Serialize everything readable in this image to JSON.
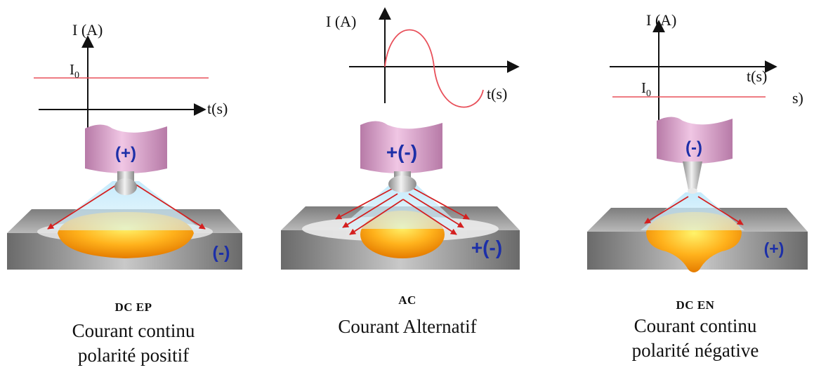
{
  "panels": [
    {
      "axis_y": "I (A)",
      "axis_x": "t(s)",
      "level_label": "I",
      "level_sub": "0",
      "electrode_sign": "(+)",
      "workpiece_sign": "(-)",
      "code": "DC EP",
      "desc_line1": "Courant continu",
      "desc_line2": "polarité positif"
    },
    {
      "axis_y": "I (A)",
      "axis_x": "t(s)",
      "electrode_sign": "+(-)",
      "workpiece_sign": "+(-)",
      "code": "AC",
      "desc_line1": "Courant Alternatif"
    },
    {
      "axis_y": "I (A)",
      "axis_x": "t(s)",
      "level_label": "I",
      "level_sub": "0",
      "stray_label": "s)",
      "electrode_sign": "(-)",
      "workpiece_sign": "(+)",
      "code": "DC EN",
      "desc_line1": "Courant continu",
      "desc_line2": "polarité négative"
    }
  ],
  "colors": {
    "current_line": "#e8505a",
    "sign": "#1c2fa8",
    "electrode": "#d79ac7",
    "plate": "#9a9a9a",
    "pool": "#ffa51a",
    "arc": "#8fd3f0",
    "arrow": "#d42020"
  }
}
